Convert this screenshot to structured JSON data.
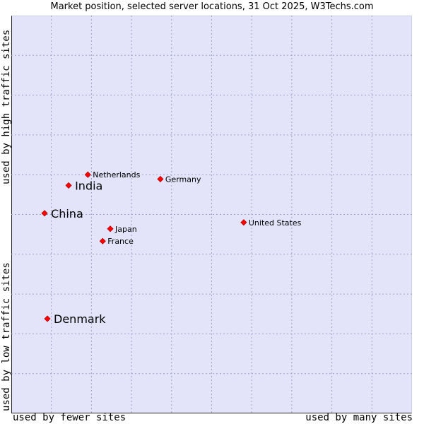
{
  "chart_data": {
    "type": "scatter",
    "title": "Market position, selected server locations, 31 Oct 2025, W3Techs.com",
    "xlabel_low": "used by fewer sites",
    "xlabel_high": "used by many sites",
    "ylabel_low": "used by low traffic sites",
    "ylabel_high": "used by high traffic sites",
    "xlim": [
      0,
      100
    ],
    "ylim": [
      0,
      100
    ],
    "grid": true,
    "points": [
      {
        "label": "Netherlands",
        "x": 19.1,
        "y": 60.0,
        "size": "small"
      },
      {
        "label": "India",
        "x": 14.3,
        "y": 57.3,
        "size": "large"
      },
      {
        "label": "Germany",
        "x": 37.2,
        "y": 58.9,
        "size": "small"
      },
      {
        "label": "China",
        "x": 8.3,
        "y": 50.3,
        "size": "large"
      },
      {
        "label": "Japan",
        "x": 24.7,
        "y": 46.4,
        "size": "small"
      },
      {
        "label": "France",
        "x": 22.8,
        "y": 43.3,
        "size": "small"
      },
      {
        "label": "United States",
        "x": 58.0,
        "y": 48.0,
        "size": "small"
      },
      {
        "label": "Denmark",
        "x": 9.0,
        "y": 23.8,
        "size": "large"
      }
    ]
  },
  "colors": {
    "plot_background": "#e3e4fa",
    "marker": "#ff0000",
    "grid": "#a0a0c8"
  }
}
